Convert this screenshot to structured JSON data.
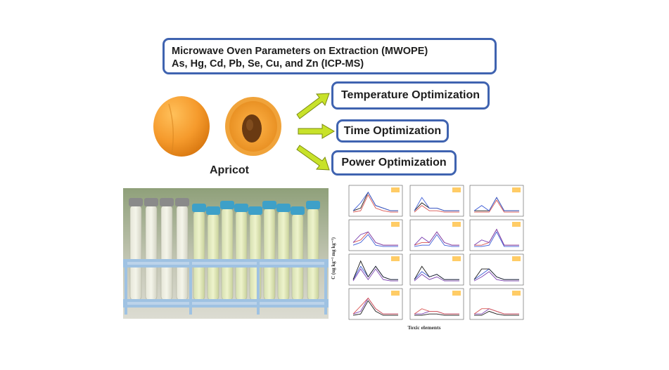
{
  "title_box": {
    "line1": "Microwave Oven Parameters on Extraction (MWOPE)",
    "line2": "As, Hg, Cd, Pb, Se, Cu, and Zn (ICP-MS)"
  },
  "optimizations": {
    "temperature": "Temperature Optimization",
    "time": "Time Optimization",
    "power": "Power Optimization"
  },
  "apricot_label": "Apricot",
  "chart_grid": {
    "y_axis_label": "C (ug kg⁻¹ mg kg⁻¹)",
    "x_axis_label": "Toxic elements"
  },
  "colors": {
    "box_border": "#3f63b0",
    "arrow_fill": "#c8e22a",
    "apricot": "#f59a2c",
    "tube_cap_blue": "#3ea0c8",
    "tube_cap_gray": "#8a8a8a",
    "rack_blue": "#bcd3ea"
  }
}
